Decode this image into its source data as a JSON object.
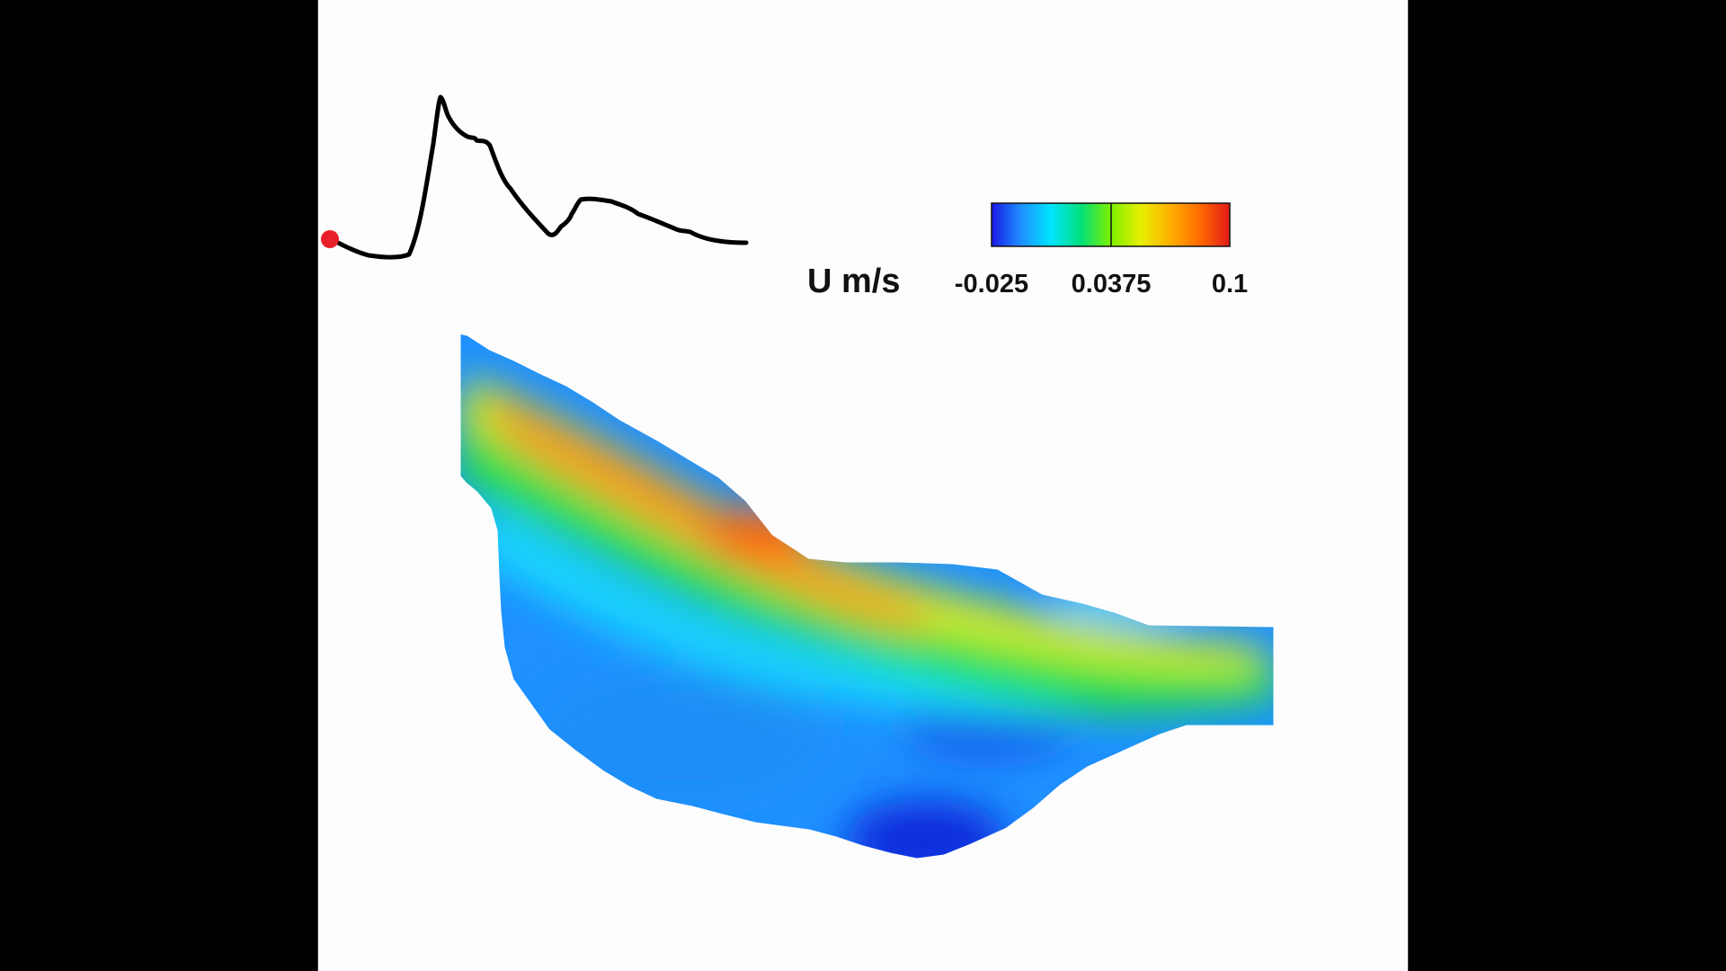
{
  "legend": {
    "variable_label": "U m/s",
    "min_value": -0.025,
    "mid_value": 0.0375,
    "max_value": 0.1,
    "tick_labels": [
      "-0.025",
      "0.0375",
      "0.1"
    ],
    "colormap": [
      "#1a1ae6",
      "#1e90ff",
      "#00e5ff",
      "#00e07a",
      "#7cf000",
      "#e6f000",
      "#ffb000",
      "#ff6a00",
      "#e21a1a"
    ]
  },
  "time_marker": {
    "color": "#e8202a"
  },
  "hydrograph": {
    "color": "#000000"
  },
  "velocity_field": {
    "colors": {
      "background": "#1e90ff",
      "deep_blue": "#0a2bdc",
      "cyan": "#18d8ff",
      "green": "#22e04a",
      "yellow": "#e6f000",
      "orange": "#ff9a10",
      "red_orange": "#ff6a10"
    }
  }
}
